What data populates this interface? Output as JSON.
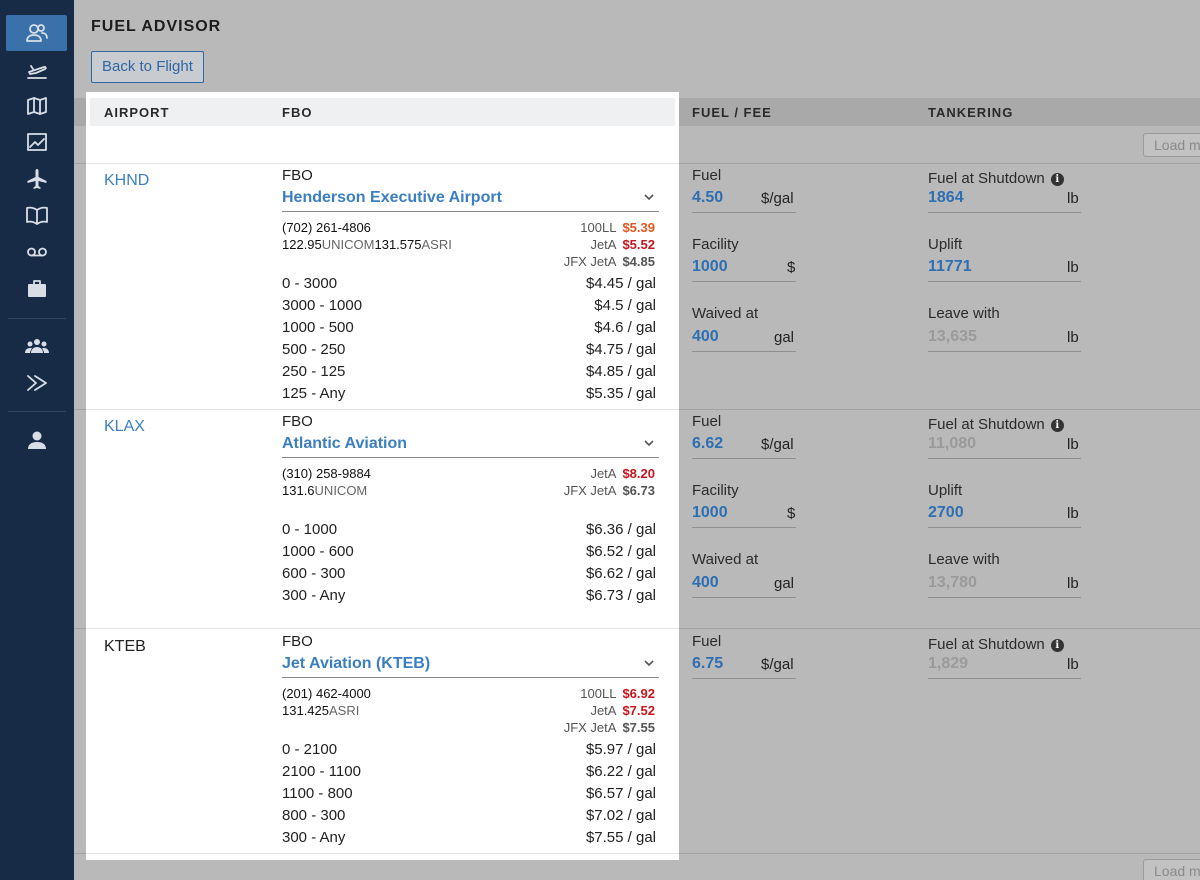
{
  "page": {
    "title": "FUEL ADVISOR",
    "back_label": "Back to Flight",
    "load_label": "Load m"
  },
  "colors": {
    "sidebar": "#172b47",
    "active_nav": "#3a71ab",
    "link": "#3c7fc1",
    "price_orange": "#e2581d",
    "price_red": "#c4161c"
  },
  "nav_icons": [
    "nav-top-partial-icon",
    "crew-icon",
    "departure-icon",
    "map-icon",
    "chart-icon",
    "airplane-icon",
    "book-icon",
    "voicemail-icon",
    "briefcase-icon",
    "group-icon",
    "forward-icon",
    "user-icon"
  ],
  "columns": {
    "airport": "AIRPORT",
    "fbo": "FBO",
    "fuel_fee": "FUEL / FEE",
    "tankering": "TANKERING"
  },
  "rows": [
    {
      "airport": "KHND",
      "fbo_label": "FBO",
      "fbo_name": "Henderson Executive Airport",
      "phone": "(702) 261-4806",
      "radio": [
        {
          "freq": "122.95",
          "name": "UNICOM"
        },
        {
          "freq": "131.575",
          "name": "ASRI"
        }
      ],
      "prices": [
        {
          "type": "100LL",
          "price": "$5.39"
        },
        {
          "type": "JetA",
          "price": "$5.52"
        },
        {
          "type": "JFX JetA",
          "price": "$4.85"
        }
      ],
      "tiers": [
        {
          "range": "0 - 3000",
          "price": "$4.45 / gal"
        },
        {
          "range": "3000 - 1000",
          "price": "$4.5 / gal"
        },
        {
          "range": "1000 - 500",
          "price": "$4.6 / gal"
        },
        {
          "range": "500 - 250",
          "price": "$4.75 / gal"
        },
        {
          "range": "250 - 125",
          "price": "$4.85 / gal"
        },
        {
          "range": "125 - Any",
          "price": "$5.35 / gal"
        }
      ],
      "fuel": {
        "label": "Fuel",
        "value": "4.50",
        "unit": "$/gal"
      },
      "facility": {
        "label": "Facility",
        "value": "1000",
        "unit": "$"
      },
      "waived": {
        "label": "Waived at",
        "value": "400",
        "unit": "gal"
      },
      "shutdown": {
        "label": "Fuel at Shutdown",
        "value": "1864",
        "unit": "lb"
      },
      "uplift": {
        "label": "Uplift",
        "value": "11771",
        "unit": "lb"
      },
      "leave": {
        "label": "Leave with",
        "value": "13,635",
        "unit": "lb"
      }
    },
    {
      "airport": "KLAX",
      "fbo_label": "FBO",
      "fbo_name": "Atlantic Aviation",
      "phone": "(310) 258-9884",
      "radio": [
        {
          "freq": "131.6",
          "name": "UNICOM"
        }
      ],
      "prices": [
        {
          "type": "JetA",
          "price": "$8.20"
        },
        {
          "type": "JFX JetA",
          "price": "$6.73"
        }
      ],
      "tiers": [
        {
          "range": "0 - 1000",
          "price": "$6.36 / gal"
        },
        {
          "range": "1000 - 600",
          "price": "$6.52 / gal"
        },
        {
          "range": "600 - 300",
          "price": "$6.62 / gal"
        },
        {
          "range": "300 - Any",
          "price": "$6.73 / gal"
        }
      ],
      "fuel": {
        "label": "Fuel",
        "value": "6.62",
        "unit": "$/gal"
      },
      "facility": {
        "label": "Facility",
        "value": "1000",
        "unit": "$"
      },
      "waived": {
        "label": "Waived at",
        "value": "400",
        "unit": "gal"
      },
      "shutdown": {
        "label": "Fuel at Shutdown",
        "value": "11,080",
        "unit": "lb"
      },
      "uplift": {
        "label": "Uplift",
        "value": "2700",
        "unit": "lb"
      },
      "leave": {
        "label": "Leave with",
        "value": "13,780",
        "unit": "lb"
      }
    },
    {
      "airport": "KTEB",
      "fbo_label": "FBO",
      "fbo_name": "Jet Aviation (KTEB)",
      "phone": "(201) 462-4000",
      "radio": [
        {
          "freq": "131.425",
          "name": "ASRI"
        }
      ],
      "prices": [
        {
          "type": "100LL",
          "price": "$6.92"
        },
        {
          "type": "JetA",
          "price": "$7.52"
        },
        {
          "type": "JFX JetA",
          "price": "$7.55"
        }
      ],
      "tiers": [
        {
          "range": "0 - 2100",
          "price": "$5.97 / gal"
        },
        {
          "range": "2100 - 1100",
          "price": "$6.22 / gal"
        },
        {
          "range": "1100 - 800",
          "price": "$6.57 / gal"
        },
        {
          "range": "800 - 300",
          "price": "$7.02 / gal"
        },
        {
          "range": "300 - Any",
          "price": "$7.55 / gal"
        }
      ],
      "fuel": {
        "label": "Fuel",
        "value": "6.75",
        "unit": "$/gal"
      },
      "shutdown": {
        "label": "Fuel at Shutdown",
        "value": "1,829",
        "unit": "lb"
      }
    }
  ]
}
